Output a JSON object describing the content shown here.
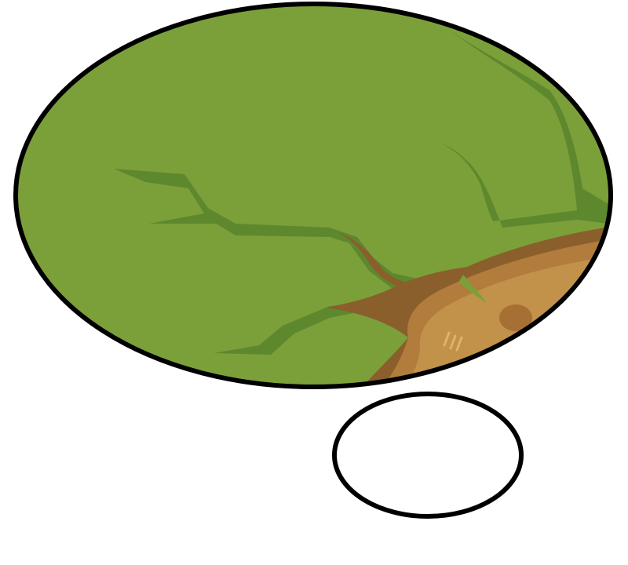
{
  "scene": {
    "background_color": "#ffffff",
    "outline_color": "#000000",
    "grass_color": "#7ba03a",
    "crack_color": "#5e882d",
    "dirt_outer_color": "#8a5f2c",
    "dirt_mid_color": "#b17c3c",
    "dirt_inner_color": "#c2914a",
    "bubble_fill_color": "#ffffff"
  },
  "icons": {
    "large_bubble": "thought-bubble-large",
    "small_bubble": "thought-bubble-small"
  }
}
